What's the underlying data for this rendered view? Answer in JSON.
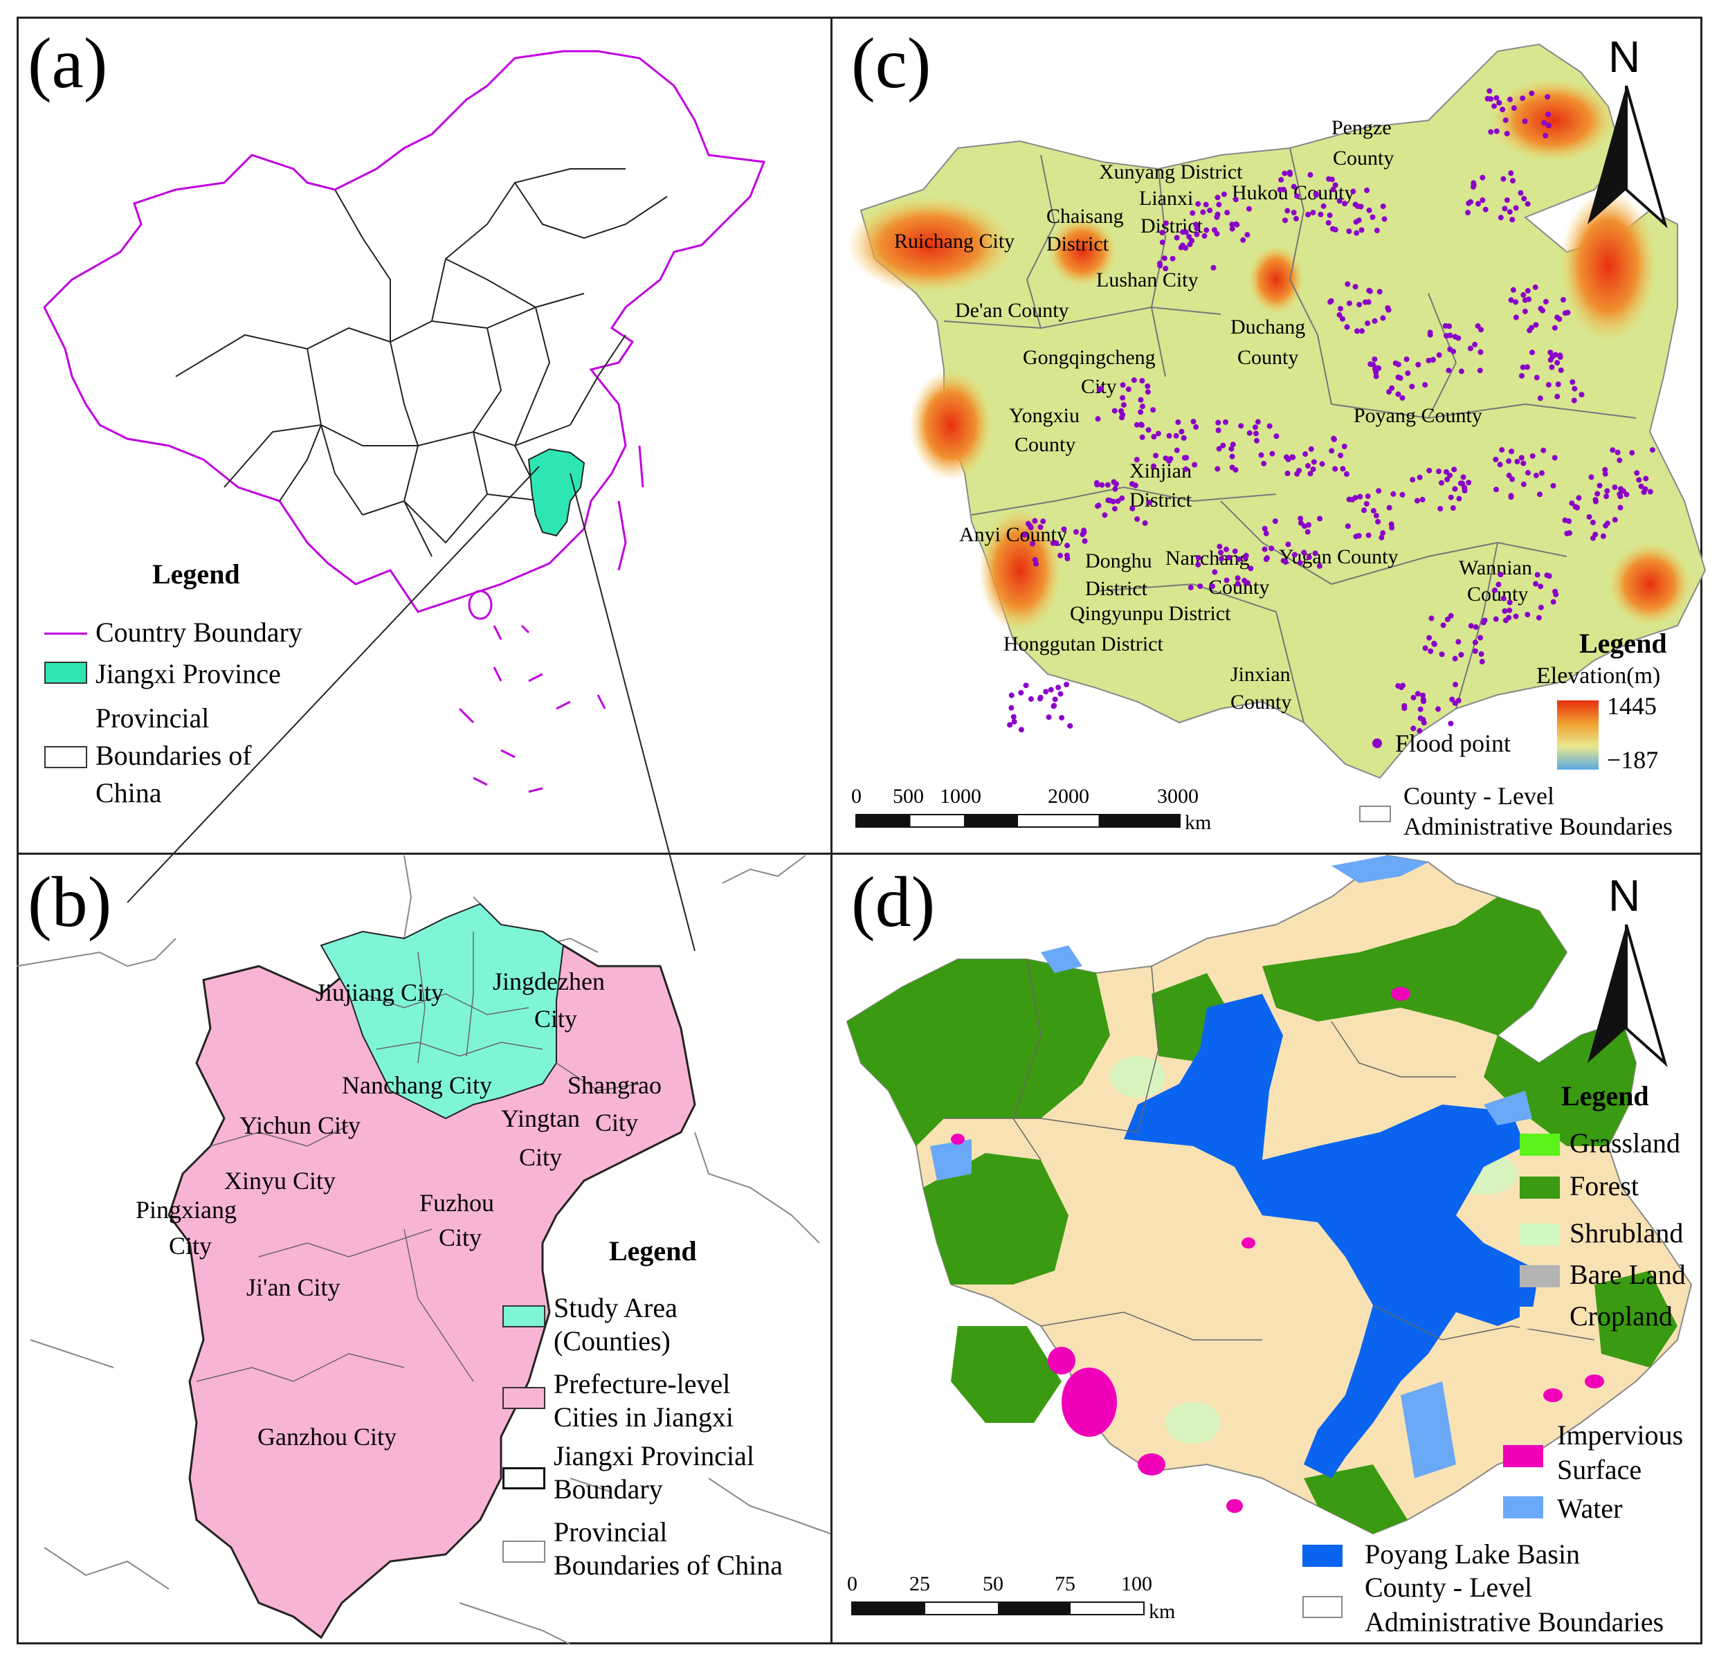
{
  "panels": {
    "a": {
      "letter": "(a)",
      "legend": {
        "title": "Legend",
        "items": [
          "Country Boundary",
          "Jiangxi Province",
          "Provincial",
          "Boundaries of",
          "China"
        ]
      },
      "colors": {
        "country": "#c000e0",
        "jiangxi": "#2ee6b5",
        "provinces": "#222222"
      }
    },
    "b": {
      "letter": "(b)",
      "cities": [
        "Jiujiang City",
        "Jingdezhen",
        "City",
        "Nanchang City",
        "Shangrao",
        "City",
        "Yingtan",
        "City",
        "Yichun City",
        "Xinyu City",
        "Pingxiang",
        "City",
        "Fuzhou",
        "City",
        "Ji'an City",
        "Ganzhou City"
      ],
      "legend": {
        "title": "Legend",
        "items": [
          "Study Area",
          "(Counties)",
          "Prefecture-level",
          "Cities in Jiangxi",
          "Jiangxi Provincial",
          "Boundary",
          "Provincial",
          "Boundaries of China"
        ]
      },
      "colors": {
        "study": "#7ff5d7",
        "prefecture": "#f8b4d4",
        "context": "#888888"
      }
    },
    "c": {
      "letter": "(c)",
      "north": "N",
      "counties": [
        "Pengze",
        "County",
        "Xunyang District",
        "Hukou County",
        "Lianxi",
        "District",
        "Chaisang",
        "District",
        "Ruichang City",
        "Lushan City",
        "De'an County",
        "Duchang",
        "County",
        "Gongqingcheng",
        "City",
        "Yongxiu",
        "County",
        "Poyang County",
        "Xinjian",
        "District",
        "Anyi County",
        "Donghu",
        "District",
        "Nanchang",
        "County",
        "Yugan County",
        "Wannian",
        "County",
        "Qingyunpu District",
        "Honggutan District",
        "Jinxian",
        "County"
      ],
      "legend": {
        "title": "Legend",
        "elevation_label": "Elevation(m)",
        "elev_max": "1445",
        "elev_min": "−187",
        "flood": "Flood point",
        "admin1": "County - Level",
        "admin2": "Administrative Boundaries"
      },
      "scale": {
        "ticks": [
          "0",
          "500",
          "1000",
          "2000",
          "3000"
        ],
        "unit": "km"
      },
      "colors": {
        "flood": "#8a00c8",
        "low": "#5aa8e0",
        "mid": "#d8e690",
        "high": "#e83010"
      }
    },
    "d": {
      "letter": "(d)",
      "north": "N",
      "legend": {
        "title": "Legend",
        "items": [
          "Grassland",
          "Forest",
          "Shrubland",
          "Bare Land",
          "Cropland",
          "Impervious",
          "Surface",
          "Water",
          "Poyang Lake Basin",
          "County - Level",
          "Administrative Boundaries"
        ]
      },
      "scale": {
        "ticks": [
          "0",
          "25",
          "50",
          "75",
          "100"
        ],
        "unit": "km"
      },
      "colors": {
        "grassland": "#5cf21a",
        "forest": "#3a9a12",
        "shrubland": "#d0f8c0",
        "bare": "#b4b4b4",
        "cropland": "#f8e2b4",
        "impervious": "#f000b8",
        "water": "#6aa8f8",
        "basin": "#0a64f0"
      }
    }
  }
}
